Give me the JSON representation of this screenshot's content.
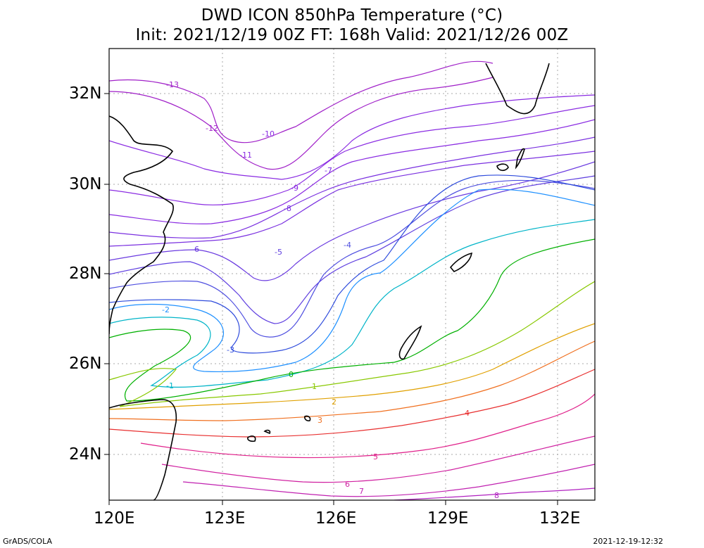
{
  "title": {
    "line1": "DWD ICON 850hPa Temperature (°C)",
    "line2": "Init: 2021/12/19 00Z  FT: 168h  Valid: 2021/12/26 00Z"
  },
  "axes": {
    "x_labels": [
      "120E",
      "123E",
      "126E",
      "129E",
      "132E"
    ],
    "y_labels": [
      "32N",
      "30N",
      "28N",
      "26N",
      "24N"
    ],
    "lon_range": [
      120,
      133
    ],
    "lat_range": [
      23,
      33
    ]
  },
  "footer": {
    "left": "GrADS/COLA",
    "right": "2021-12-19-12:32"
  },
  "contour_labels": [
    {
      "text": "-13",
      "color": "#a020c8"
    },
    {
      "text": "-12",
      "color": "#a020c8"
    },
    {
      "text": "-11",
      "color": "#8a2be2"
    },
    {
      "text": "-10",
      "color": "#8a2be2"
    },
    {
      "text": "-9",
      "color": "#8a2be2"
    },
    {
      "text": "-8",
      "color": "#7a30e0"
    },
    {
      "text": "-7",
      "color": "#7a30e0"
    },
    {
      "text": "-6",
      "color": "#6a3ae0"
    },
    {
      "text": "-5",
      "color": "#6040e0"
    },
    {
      "text": "-4",
      "color": "#5050e0"
    },
    {
      "text": "-3",
      "color": "#2e4bdc"
    },
    {
      "text": "-2",
      "color": "#1e90ff"
    },
    {
      "text": "-1",
      "color": "#00b4c8"
    },
    {
      "text": "0",
      "color": "#00b000"
    },
    {
      "text": "1",
      "color": "#88c800"
    },
    {
      "text": "2",
      "color": "#e0a000"
    },
    {
      "text": "3",
      "color": "#f07020"
    },
    {
      "text": "4",
      "color": "#e83030"
    },
    {
      "text": "5",
      "color": "#e0208a"
    },
    {
      "text": "6",
      "color": "#d020a0"
    },
    {
      "text": "7",
      "color": "#c020b0"
    },
    {
      "text": "8",
      "color": "#b020c0"
    }
  ],
  "colors": {
    "frame": "#000000",
    "grid": "#aaaaaa",
    "coast": "#000000"
  }
}
